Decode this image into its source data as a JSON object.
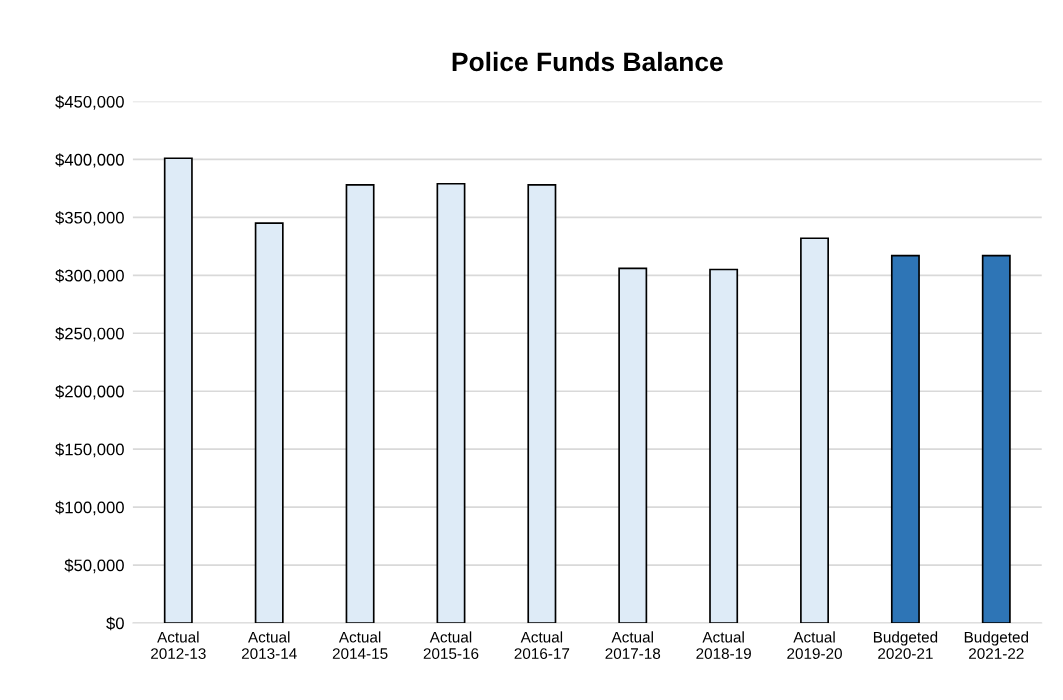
{
  "chart_data": {
    "type": "bar",
    "title": "Police Funds Balance",
    "categories": [
      "Actual\n2012-13",
      "Actual\n2013-14",
      "Actual\n2014-15",
      "Actual\n2015-16",
      "Actual\n2016-17",
      "Actual\n2017-18",
      "Actual\n2018-19",
      "Actual\n2019-20",
      "Budgeted\n2020-21",
      "Budgeted\n2021-22"
    ],
    "values": [
      401000,
      345000,
      378000,
      379000,
      378000,
      306000,
      305000,
      332000,
      317000,
      317000
    ],
    "colors": [
      "#deebf7",
      "#deebf7",
      "#deebf7",
      "#deebf7",
      "#deebf7",
      "#deebf7",
      "#deebf7",
      "#deebf7",
      "#2e75b6",
      "#2e75b6"
    ],
    "ylim": [
      0,
      450000
    ],
    "yticks": [
      {
        "value": 0,
        "label": "$0"
      },
      {
        "value": 50000,
        "label": "$50,000"
      },
      {
        "value": 100000,
        "label": "$100,000"
      },
      {
        "value": 150000,
        "label": "$150,000"
      },
      {
        "value": 200000,
        "label": "$200,000"
      },
      {
        "value": 250000,
        "label": "$250,000"
      },
      {
        "value": 300000,
        "label": "$300,000"
      },
      {
        "value": 350000,
        "label": "$350,000"
      },
      {
        "value": 400000,
        "label": "$400,000"
      },
      {
        "value": 450000,
        "label": "$450,000"
      }
    ],
    "grid": "y",
    "legend": false
  }
}
